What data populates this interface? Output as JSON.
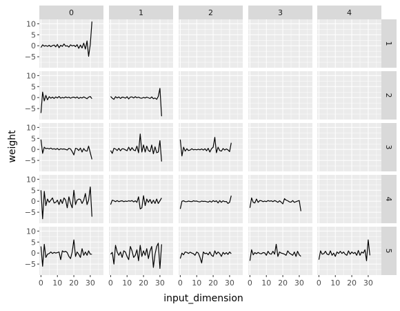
{
  "chart_data": {
    "type": "line",
    "xlabel": "input_dimension",
    "ylabel": "weight",
    "col_facets": [
      "0",
      "1",
      "2",
      "3",
      "4"
    ],
    "row_facets": [
      "1",
      "2",
      "3",
      "4",
      "5"
    ],
    "xlim": [
      -1,
      38
    ],
    "ylim": [
      -10,
      12
    ],
    "xticks": [
      0,
      10,
      20,
      30
    ],
    "xtick_labels": [
      "0",
      "10",
      "20",
      "30"
    ],
    "yticks": [
      -5,
      0,
      5,
      10
    ],
    "ytick_labels": [
      "−5",
      "0",
      "5",
      "10"
    ],
    "grid": true,
    "panels": [
      {
        "row": "1",
        "col": "0",
        "x": [
          0,
          1,
          2,
          3,
          4,
          5,
          6,
          7,
          8,
          9,
          10,
          11,
          12,
          13,
          14,
          15,
          16,
          17,
          18,
          19,
          20,
          21,
          22,
          23,
          24,
          25,
          26,
          27,
          28,
          29,
          30,
          31
        ],
        "y": [
          -0.8,
          0.4,
          -0.2,
          0.1,
          -0.3,
          0.2,
          -0.4,
          0.1,
          0.3,
          -0.5,
          0.6,
          -0.9,
          0.2,
          -0.3,
          0.8,
          -0.2,
          0.0,
          -0.6,
          0.4,
          -0.1,
          0.2,
          -0.4,
          0.5,
          -1.2,
          0.3,
          -1.0,
          1.2,
          -1.5,
          2.2,
          -4.8,
          0.5,
          11.0
        ]
      },
      {
        "row": "2",
        "col": "0",
        "x": [
          0,
          1,
          2,
          3,
          4,
          5,
          6,
          7,
          8,
          9,
          10,
          11,
          12,
          13,
          14,
          15,
          16,
          17,
          18,
          19,
          20,
          21,
          22,
          23,
          24,
          25,
          26,
          27,
          28,
          29,
          30,
          31
        ],
        "y": [
          -7.0,
          2.5,
          -1.5,
          1.0,
          -1.0,
          0.4,
          -0.3,
          0.2,
          -0.4,
          0.3,
          -0.2,
          0.5,
          -0.3,
          0.1,
          -0.2,
          0.3,
          -0.1,
          0.2,
          -0.3,
          0.1,
          0.2,
          -0.2,
          0.3,
          -0.4,
          0.1,
          -0.2,
          0.3,
          -0.1,
          -0.5,
          0.2,
          0.5,
          -0.5
        ]
      },
      {
        "row": "2",
        "col": "1",
        "x": [
          0,
          1,
          2,
          3,
          4,
          5,
          6,
          7,
          8,
          9,
          10,
          11,
          12,
          13,
          14,
          15,
          16,
          17,
          18,
          19,
          20,
          21,
          22,
          23,
          24,
          25,
          26,
          27,
          28,
          29,
          30,
          31
        ],
        "y": [
          0.5,
          -0.3,
          -0.8,
          0.4,
          -0.2,
          0.3,
          -0.4,
          0.2,
          0.1,
          -0.3,
          0.4,
          -0.6,
          0.2,
          0.3,
          -0.2,
          0.4,
          -0.1,
          0.2,
          -0.2,
          -0.3,
          0.1,
          -0.2,
          0.2,
          -0.1,
          -0.4,
          0.3,
          -0.5,
          -0.2,
          -0.8,
          0.5,
          4.2,
          -8.5
        ]
      },
      {
        "row": "3",
        "col": "0",
        "x": [
          0,
          1,
          2,
          3,
          4,
          5,
          6,
          7,
          8,
          9,
          10,
          11,
          12,
          13,
          14,
          15,
          16,
          17,
          18,
          19,
          20,
          21,
          22,
          23,
          24,
          25,
          26,
          27,
          28,
          29,
          30,
          31
        ],
        "y": [
          4.5,
          -1.8,
          1.0,
          0.3,
          0.5,
          0.2,
          0.6,
          0.1,
          0.3,
          0.0,
          0.4,
          -0.2,
          0.3,
          0.1,
          0.2,
          0.0,
          -0.3,
          0.5,
          0.2,
          -1.0,
          -2.5,
          0.5,
          0.3,
          -0.5,
          0.6,
          -1.2,
          0.4,
          -0.6,
          -0.8,
          1.5,
          -1.5,
          -4.5
        ]
      },
      {
        "row": "3",
        "col": "1",
        "x": [
          0,
          1,
          2,
          3,
          4,
          5,
          6,
          7,
          8,
          9,
          10,
          11,
          12,
          13,
          14,
          15,
          16,
          17,
          18,
          19,
          20,
          21,
          22,
          23,
          24,
          25,
          26,
          27,
          28,
          29,
          30,
          31
        ],
        "y": [
          -0.5,
          -1.8,
          0.5,
          0.2,
          -0.5,
          0.5,
          -0.6,
          0.3,
          0.2,
          -0.2,
          -0.6,
          1.0,
          -0.5,
          0.8,
          -0.3,
          -0.6,
          1.5,
          -1.5,
          7.0,
          -1.2,
          2.0,
          -1.2,
          1.5,
          -0.5,
          -1.0,
          2.0,
          -2.0,
          1.2,
          -1.5,
          -1.2,
          4.0,
          -5.5
        ]
      },
      {
        "row": "3",
        "col": "2",
        "x": [
          0,
          1,
          2,
          3,
          4,
          5,
          6,
          7,
          8,
          9,
          10,
          11,
          12,
          13,
          14,
          15,
          16,
          17,
          18,
          19,
          20,
          21,
          22,
          23,
          24,
          25,
          26,
          27,
          28,
          29,
          30,
          31
        ],
        "y": [
          4.5,
          -3.0,
          1.0,
          -0.8,
          0.3,
          -0.5,
          -0.3,
          0.3,
          -0.2,
          0.0,
          -0.2,
          0.1,
          -0.2,
          0.2,
          -0.3,
          0.3,
          -0.6,
          0.5,
          -1.2,
          0.3,
          1.0,
          5.5,
          -1.5,
          1.0,
          -0.5,
          -0.8,
          0.4,
          -0.3,
          0.2,
          -0.2,
          -1.0,
          3.0
        ]
      },
      {
        "row": "4",
        "col": "0",
        "x": [
          0,
          1,
          2,
          3,
          4,
          5,
          6,
          7,
          8,
          9,
          10,
          11,
          12,
          13,
          14,
          15,
          16,
          17,
          18,
          19,
          20,
          21,
          22,
          23,
          24,
          25,
          26,
          27,
          28,
          29,
          30,
          31
        ],
        "y": [
          5.0,
          -8.0,
          4.5,
          -2.0,
          1.0,
          -0.5,
          0.5,
          1.5,
          -0.8,
          -0.5,
          0.5,
          -1.5,
          0.8,
          -1.0,
          1.5,
          0.5,
          -3.0,
          2.0,
          -1.0,
          -3.0,
          5.0,
          -1.5,
          0.5,
          1.0,
          0.8,
          -1.0,
          0.5,
          3.5,
          -1.5,
          0.5,
          6.5,
          -7.0
        ]
      },
      {
        "row": "4",
        "col": "1",
        "x": [
          0,
          1,
          2,
          3,
          4,
          5,
          6,
          7,
          8,
          9,
          10,
          11,
          12,
          13,
          14,
          15,
          16,
          17,
          18,
          19,
          20,
          21,
          22,
          23,
          24,
          25,
          26,
          27,
          28,
          29,
          30,
          31
        ],
        "y": [
          -1.5,
          0.5,
          0.2,
          -0.2,
          0.3,
          -0.2,
          0.1,
          0.2,
          -0.2,
          0.1,
          -0.1,
          0.2,
          0.0,
          0.3,
          -0.3,
          0.2,
          -0.5,
          2.0,
          -3.5,
          -3.0,
          2.5,
          -2.0,
          1.0,
          -0.5,
          0.8,
          -1.0,
          0.5,
          -1.0,
          1.0,
          -1.0,
          0.2,
          1.5
        ]
      },
      {
        "row": "4",
        "col": "2",
        "x": [
          0,
          1,
          2,
          3,
          4,
          5,
          6,
          7,
          8,
          9,
          10,
          11,
          12,
          13,
          14,
          15,
          16,
          17,
          18,
          19,
          20,
          21,
          22,
          23,
          24,
          25,
          26,
          27,
          28,
          29,
          30,
          31
        ],
        "y": [
          -3.5,
          0.0,
          0.2,
          -0.2,
          -0.2,
          0.1,
          -0.1,
          -0.2,
          0.2,
          0.0,
          0.1,
          -0.2,
          -0.3,
          0.1,
          -0.1,
          0.0,
          -0.2,
          -0.4,
          0.1,
          -0.4,
          0.3,
          -0.2,
          0.2,
          -0.8,
          0.3,
          -0.5,
          0.2,
          -0.2,
          -0.1,
          -1.0,
          -0.5,
          2.5
        ]
      },
      {
        "row": "4",
        "col": "3",
        "x": [
          0,
          1,
          2,
          3,
          4,
          5,
          6,
          7,
          8,
          9,
          10,
          11,
          12,
          13,
          14,
          15,
          16,
          17,
          18,
          19,
          20,
          21,
          22,
          23,
          24,
          25,
          26,
          27,
          28,
          29,
          30,
          31
        ],
        "y": [
          -3.0,
          1.5,
          -0.5,
          -0.8,
          1.0,
          -0.5,
          0.3,
          0.2,
          -0.2,
          0.1,
          -0.2,
          0.3,
          0.0,
          0.2,
          -0.2,
          0.3,
          0.0,
          -0.5,
          0.2,
          -0.4,
          -1.2,
          1.2,
          0.5,
          0.2,
          -0.3,
          -0.4,
          0.3,
          -0.5,
          -0.2,
          0.1,
          0.3,
          -4.5
        ]
      },
      {
        "row": "5",
        "col": "0",
        "x": [
          0,
          1,
          2,
          3,
          4,
          5,
          6,
          7,
          8,
          9,
          10,
          11,
          12,
          13,
          14,
          15,
          16,
          17,
          18,
          19,
          20,
          21,
          22,
          23,
          24,
          25,
          26,
          27,
          28,
          29,
          30,
          31
        ],
        "y": [
          3.0,
          -6.0,
          4.0,
          -2.0,
          -0.5,
          -0.2,
          0.5,
          -0.2,
          0.3,
          0.0,
          0.2,
          0.5,
          -3.0,
          1.0,
          0.5,
          0.8,
          0.2,
          -1.5,
          -2.5,
          0.5,
          6.0,
          -1.5,
          0.5,
          -0.5,
          -2.0,
          2.0,
          -1.0,
          0.5,
          -1.0,
          1.0,
          -0.5,
          -0.5
        ]
      },
      {
        "row": "5",
        "col": "1",
        "x": [
          0,
          1,
          2,
          3,
          4,
          5,
          6,
          7,
          8,
          9,
          10,
          11,
          12,
          13,
          14,
          15,
          16,
          17,
          18,
          19,
          20,
          21,
          22,
          23,
          24,
          25,
          26,
          27,
          28,
          29,
          30,
          31
        ],
        "y": [
          -0.5,
          0.3,
          -5.0,
          3.5,
          0.5,
          -1.0,
          0.5,
          -2.0,
          1.0,
          0.5,
          -1.5,
          -3.0,
          3.0,
          1.0,
          -2.0,
          -1.0,
          1.5,
          -3.5,
          3.5,
          -1.5,
          1.0,
          -1.0,
          2.0,
          -2.5,
          1.0,
          3.0,
          -6.5,
          -0.5,
          3.0,
          4.5,
          -7.0,
          4.0
        ]
      },
      {
        "row": "5",
        "col": "2",
        "x": [
          0,
          1,
          2,
          3,
          4,
          5,
          6,
          7,
          8,
          9,
          10,
          11,
          12,
          13,
          14,
          15,
          16,
          17,
          18,
          19,
          20,
          21,
          22,
          23,
          24,
          25,
          26,
          27,
          28,
          29,
          30,
          31
        ],
        "y": [
          -2.5,
          0.0,
          -0.8,
          0.5,
          0.3,
          -0.2,
          0.4,
          0.0,
          -0.3,
          -1.0,
          0.5,
          0.0,
          -2.0,
          -4.5,
          0.5,
          -0.3,
          0.0,
          -0.8,
          0.5,
          -1.0,
          -1.5,
          1.0,
          -0.5,
          0.5,
          -0.2,
          -1.5,
          0.3,
          -0.5,
          0.2,
          -0.6,
          0.5,
          -0.3
        ]
      },
      {
        "row": "5",
        "col": "3",
        "x": [
          0,
          1,
          2,
          3,
          4,
          5,
          6,
          7,
          8,
          9,
          10,
          11,
          12,
          13,
          14,
          15,
          16,
          17,
          18,
          19,
          20,
          21,
          22,
          23,
          24,
          25,
          26,
          27,
          28,
          29,
          30,
          31
        ],
        "y": [
          -3.5,
          1.5,
          -0.8,
          0.2,
          -0.3,
          0.3,
          -0.2,
          -0.3,
          0.2,
          0.1,
          -1.0,
          0.8,
          -0.3,
          -0.5,
          0.8,
          -0.5,
          4.0,
          -1.5,
          0.5,
          0.0,
          -0.2,
          -0.5,
          -1.0,
          1.0,
          0.0,
          -0.5,
          -1.0,
          0.5,
          -1.5,
          0.8,
          -0.8,
          -1.5
        ]
      },
      {
        "row": "5",
        "col": "4",
        "x": [
          0,
          1,
          2,
          3,
          4,
          5,
          6,
          7,
          8,
          9,
          10,
          11,
          12,
          13,
          14,
          15,
          16,
          17,
          18,
          19,
          20,
          21,
          22,
          23,
          24,
          25,
          26,
          27,
          28,
          29,
          30,
          31
        ],
        "y": [
          -3.0,
          1.0,
          -0.5,
          -0.3,
          0.8,
          -0.5,
          -0.8,
          1.0,
          -1.0,
          0.0,
          -1.5,
          0.5,
          -0.2,
          0.8,
          -0.2,
          0.5,
          -0.5,
          -1.0,
          1.0,
          -0.5,
          0.5,
          -0.2,
          0.3,
          -1.0,
          1.2,
          -1.0,
          0.5,
          0.0,
          1.5,
          -3.5,
          6.0,
          -1.0
        ]
      }
    ]
  }
}
